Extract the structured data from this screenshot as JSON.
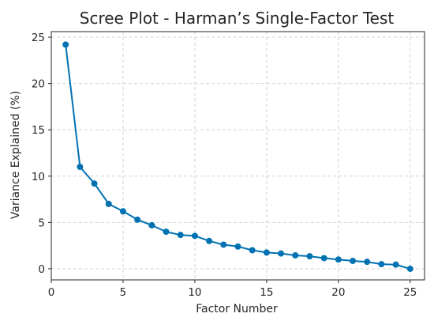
{
  "chart_data": {
    "type": "line",
    "title": "Scree Plot - Harman’s Single-Factor Test",
    "xlabel": "Factor Number",
    "ylabel": "Variance Explained (%)",
    "xlim": [
      0,
      26
    ],
    "ylim": [
      -1.2,
      25.6
    ],
    "xticks": [
      0,
      5,
      10,
      15,
      20,
      25
    ],
    "yticks": [
      0,
      5,
      10,
      15,
      20,
      25
    ],
    "grid": true,
    "series": [
      {
        "color": "#0072b2",
        "marker": "circle",
        "x": [
          1,
          2,
          3,
          4,
          5,
          6,
          7,
          8,
          9,
          10,
          11,
          12,
          13,
          14,
          15,
          16,
          17,
          18,
          19,
          20,
          21,
          22,
          23,
          24,
          25
        ],
        "y": [
          24.2,
          11.0,
          9.2,
          7.0,
          6.2,
          5.3,
          4.7,
          4.0,
          3.65,
          3.55,
          3.0,
          2.6,
          2.4,
          2.0,
          1.75,
          1.65,
          1.45,
          1.35,
          1.15,
          1.0,
          0.85,
          0.75,
          0.5,
          0.45,
          0.0
        ]
      }
    ]
  }
}
